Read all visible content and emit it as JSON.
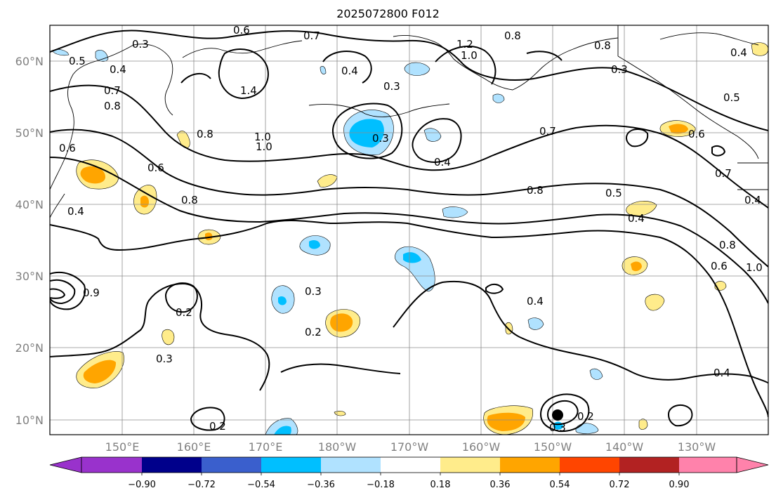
{
  "title": "2025072800 F012",
  "map": {
    "lat_labels": [
      "60°N",
      "50°N",
      "40°N",
      "30°N",
      "20°N",
      "10°N"
    ],
    "lon_labels": [
      "150°E",
      "160°E",
      "170°E",
      "180°W",
      "170°W",
      "160°W",
      "150°W",
      "140°W",
      "130°W"
    ],
    "gridlines": true,
    "coastlines": true
  },
  "colorbar": {
    "ticks": [
      "−0.90",
      "−0.72",
      "−0.54",
      "−0.36",
      "−0.18",
      "0.18",
      "0.36",
      "0.54",
      "0.72",
      "0.90"
    ],
    "colors": [
      "#9932cc",
      "#00008b",
      "#3a5fcd",
      "#00bfff",
      "#b0e2ff",
      "#ffffff",
      "#ffec8b",
      "#ffa500",
      "#ff4500",
      "#b22222",
      "#ff82ab"
    ],
    "extend": "both"
  },
  "contour_labels": [
    "0.3",
    "0.6",
    "0.7",
    "1.2",
    "0.5",
    "0.4",
    "0.8",
    "1.0",
    "1.4",
    "0.7",
    "0.3",
    "0.4",
    "0.8",
    "0.6",
    "0.8",
    "1.0",
    "0.7",
    "0.4",
    "0.8",
    "0.5",
    "0.4",
    "0.6",
    "0.8",
    "0.3",
    "0.4",
    "0.2",
    "0.3",
    "0.2",
    "0.3",
    "0.4",
    "0.4",
    "0.2",
    "0.2",
    "0.3",
    "0.6",
    "0.8",
    "0.4",
    "0.5",
    "0.7",
    "0.9",
    "1.0",
    "0.6",
    "1.0",
    "0.4",
    "0.8",
    "0.3"
  ]
}
